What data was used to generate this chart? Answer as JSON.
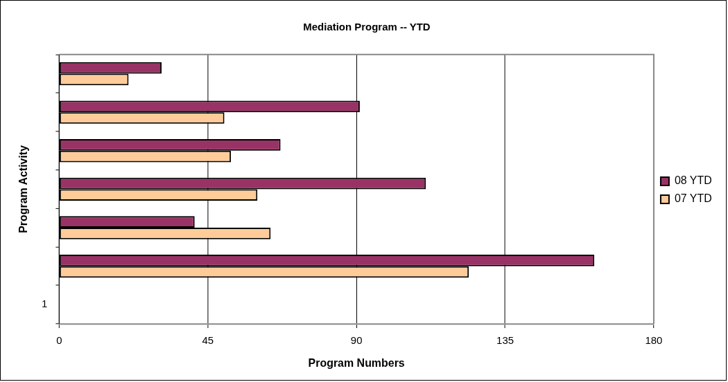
{
  "chart_data": {
    "type": "bar",
    "orientation": "horizontal",
    "title": "Mediation Program -- YTD",
    "xlabel": "Program Numbers",
    "ylabel": "Program Activity",
    "categories": [
      null,
      null,
      null,
      null,
      null,
      null,
      "1"
    ],
    "series": [
      {
        "name": "08 YTD",
        "color": "#993366",
        "values": [
          31,
          91,
          67,
          111,
          41,
          162,
          null
        ]
      },
      {
        "name": "07 YTD",
        "color": "#ffcc99",
        "values": [
          21,
          50,
          52,
          60,
          64,
          124,
          null
        ]
      }
    ],
    "xlim": [
      0,
      180
    ],
    "xticks": [
      0,
      45,
      90,
      135,
      180
    ],
    "grid": "x",
    "legend": "right"
  }
}
